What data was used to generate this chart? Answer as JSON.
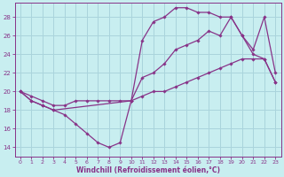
{
  "xlabel": "Windchill (Refroidissement éolien,°C)",
  "bg_color": "#c8eef0",
  "grid_color": "#aad4dc",
  "line_color": "#883388",
  "marker_color": "#883388",
  "xlim": [
    -0.5,
    23.5
  ],
  "ylim": [
    13.0,
    29.5
  ],
  "xticks": [
    0,
    1,
    2,
    3,
    4,
    5,
    6,
    7,
    8,
    9,
    10,
    11,
    12,
    13,
    14,
    15,
    16,
    17,
    18,
    19,
    20,
    21,
    22,
    23
  ],
  "yticks": [
    14,
    16,
    18,
    20,
    22,
    24,
    26,
    28
  ],
  "line1_x": [
    0,
    1,
    2,
    3,
    4,
    5,
    6,
    7,
    8,
    9,
    10,
    11,
    12,
    13,
    14,
    15,
    16,
    17,
    18,
    19,
    20,
    21,
    22,
    23
  ],
  "line1_y": [
    20,
    19,
    18.5,
    18,
    17.5,
    16.5,
    15.5,
    14.5,
    14,
    14.5,
    19,
    21.5,
    22,
    23,
    24.5,
    25,
    25.5,
    26.5,
    26,
    28,
    26,
    24,
    23.5,
    21
  ],
  "line2_x": [
    0,
    1,
    2,
    3,
    10,
    11,
    12,
    13,
    14,
    15,
    16,
    17,
    18,
    19,
    20,
    21,
    22,
    23
  ],
  "line2_y": [
    20,
    19,
    18.5,
    18,
    19,
    25.5,
    27.5,
    28,
    29,
    29,
    28.5,
    28.5,
    28,
    28,
    26,
    24.5,
    28,
    22
  ],
  "line3_x": [
    0,
    1,
    2,
    3,
    4,
    5,
    6,
    7,
    8,
    9,
    10,
    11,
    12,
    13,
    14,
    15,
    16,
    17,
    18,
    19,
    20,
    21,
    22,
    23
  ],
  "line3_y": [
    20,
    19.5,
    19,
    18.5,
    18.5,
    19,
    19,
    19,
    19,
    19,
    19,
    19.5,
    20,
    20,
    20.5,
    21,
    21.5,
    22,
    22.5,
    23,
    23.5,
    23.5,
    23.5,
    21
  ]
}
